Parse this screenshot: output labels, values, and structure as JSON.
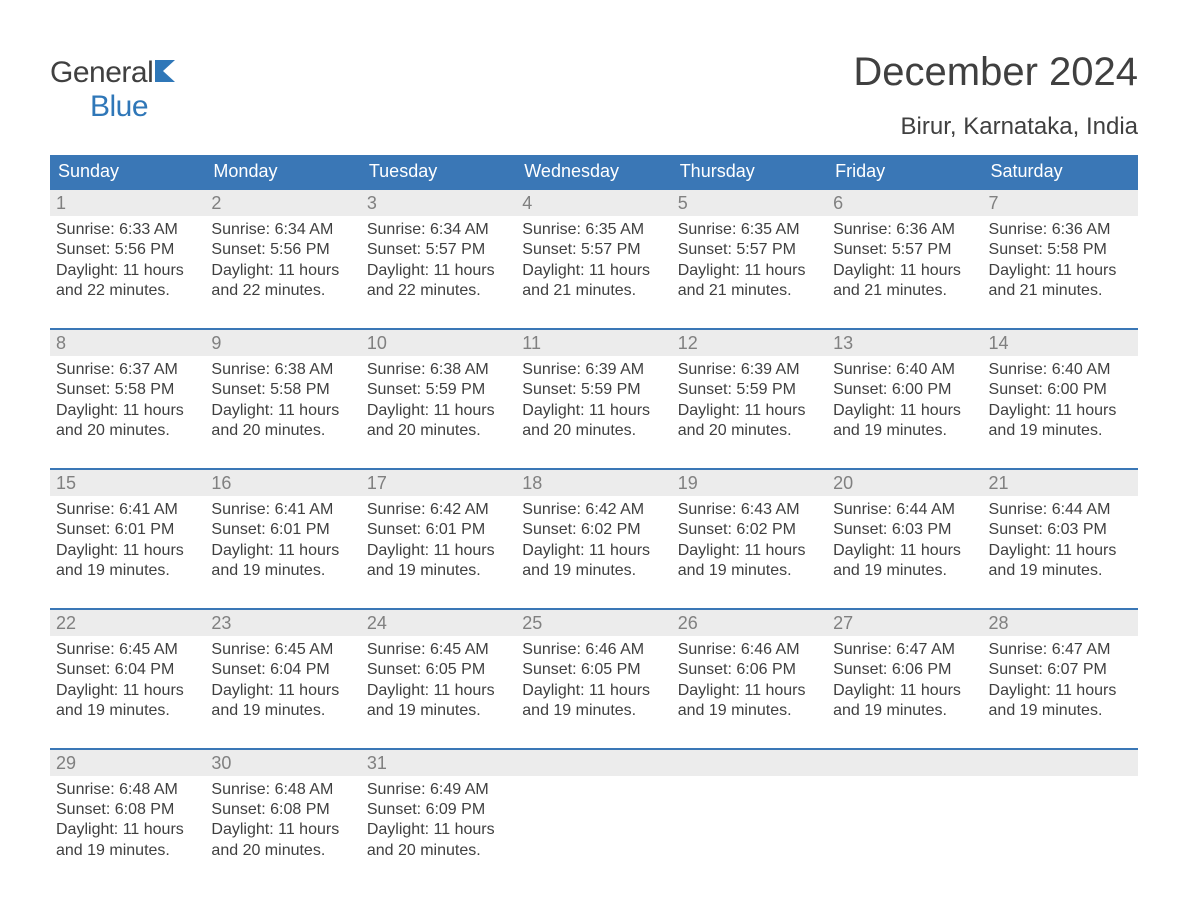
{
  "logo": {
    "text1": "General",
    "text2": "Blue"
  },
  "title": {
    "month": "December 2024",
    "location": "Birur, Karnataka, India"
  },
  "colors": {
    "header_bg": "#3a77b6",
    "header_text": "#ffffff",
    "daynum_bg": "#ececec",
    "daynum_text": "#808080",
    "body_text": "#404040",
    "logo_blue": "#2f77b8"
  },
  "weekdays": [
    "Sunday",
    "Monday",
    "Tuesday",
    "Wednesday",
    "Thursday",
    "Friday",
    "Saturday"
  ],
  "weeks": [
    [
      {
        "n": "1",
        "sr": "6:33 AM",
        "ss": "5:56 PM",
        "dl": "11 hours and 22 minutes."
      },
      {
        "n": "2",
        "sr": "6:34 AM",
        "ss": "5:56 PM",
        "dl": "11 hours and 22 minutes."
      },
      {
        "n": "3",
        "sr": "6:34 AM",
        "ss": "5:57 PM",
        "dl": "11 hours and 22 minutes."
      },
      {
        "n": "4",
        "sr": "6:35 AM",
        "ss": "5:57 PM",
        "dl": "11 hours and 21 minutes."
      },
      {
        "n": "5",
        "sr": "6:35 AM",
        "ss": "5:57 PM",
        "dl": "11 hours and 21 minutes."
      },
      {
        "n": "6",
        "sr": "6:36 AM",
        "ss": "5:57 PM",
        "dl": "11 hours and 21 minutes."
      },
      {
        "n": "7",
        "sr": "6:36 AM",
        "ss": "5:58 PM",
        "dl": "11 hours and 21 minutes."
      }
    ],
    [
      {
        "n": "8",
        "sr": "6:37 AM",
        "ss": "5:58 PM",
        "dl": "11 hours and 20 minutes."
      },
      {
        "n": "9",
        "sr": "6:38 AM",
        "ss": "5:58 PM",
        "dl": "11 hours and 20 minutes."
      },
      {
        "n": "10",
        "sr": "6:38 AM",
        "ss": "5:59 PM",
        "dl": "11 hours and 20 minutes."
      },
      {
        "n": "11",
        "sr": "6:39 AM",
        "ss": "5:59 PM",
        "dl": "11 hours and 20 minutes."
      },
      {
        "n": "12",
        "sr": "6:39 AM",
        "ss": "5:59 PM",
        "dl": "11 hours and 20 minutes."
      },
      {
        "n": "13",
        "sr": "6:40 AM",
        "ss": "6:00 PM",
        "dl": "11 hours and 19 minutes."
      },
      {
        "n": "14",
        "sr": "6:40 AM",
        "ss": "6:00 PM",
        "dl": "11 hours and 19 minutes."
      }
    ],
    [
      {
        "n": "15",
        "sr": "6:41 AM",
        "ss": "6:01 PM",
        "dl": "11 hours and 19 minutes."
      },
      {
        "n": "16",
        "sr": "6:41 AM",
        "ss": "6:01 PM",
        "dl": "11 hours and 19 minutes."
      },
      {
        "n": "17",
        "sr": "6:42 AM",
        "ss": "6:01 PM",
        "dl": "11 hours and 19 minutes."
      },
      {
        "n": "18",
        "sr": "6:42 AM",
        "ss": "6:02 PM",
        "dl": "11 hours and 19 minutes."
      },
      {
        "n": "19",
        "sr": "6:43 AM",
        "ss": "6:02 PM",
        "dl": "11 hours and 19 minutes."
      },
      {
        "n": "20",
        "sr": "6:44 AM",
        "ss": "6:03 PM",
        "dl": "11 hours and 19 minutes."
      },
      {
        "n": "21",
        "sr": "6:44 AM",
        "ss": "6:03 PM",
        "dl": "11 hours and 19 minutes."
      }
    ],
    [
      {
        "n": "22",
        "sr": "6:45 AM",
        "ss": "6:04 PM",
        "dl": "11 hours and 19 minutes."
      },
      {
        "n": "23",
        "sr": "6:45 AM",
        "ss": "6:04 PM",
        "dl": "11 hours and 19 minutes."
      },
      {
        "n": "24",
        "sr": "6:45 AM",
        "ss": "6:05 PM",
        "dl": "11 hours and 19 minutes."
      },
      {
        "n": "25",
        "sr": "6:46 AM",
        "ss": "6:05 PM",
        "dl": "11 hours and 19 minutes."
      },
      {
        "n": "26",
        "sr": "6:46 AM",
        "ss": "6:06 PM",
        "dl": "11 hours and 19 minutes."
      },
      {
        "n": "27",
        "sr": "6:47 AM",
        "ss": "6:06 PM",
        "dl": "11 hours and 19 minutes."
      },
      {
        "n": "28",
        "sr": "6:47 AM",
        "ss": "6:07 PM",
        "dl": "11 hours and 19 minutes."
      }
    ],
    [
      {
        "n": "29",
        "sr": "6:48 AM",
        "ss": "6:08 PM",
        "dl": "11 hours and 19 minutes."
      },
      {
        "n": "30",
        "sr": "6:48 AM",
        "ss": "6:08 PM",
        "dl": "11 hours and 20 minutes."
      },
      {
        "n": "31",
        "sr": "6:49 AM",
        "ss": "6:09 PM",
        "dl": "11 hours and 20 minutes."
      },
      null,
      null,
      null,
      null
    ]
  ],
  "labels": {
    "sunrise": "Sunrise:",
    "sunset": "Sunset:",
    "daylight": "Daylight:"
  }
}
